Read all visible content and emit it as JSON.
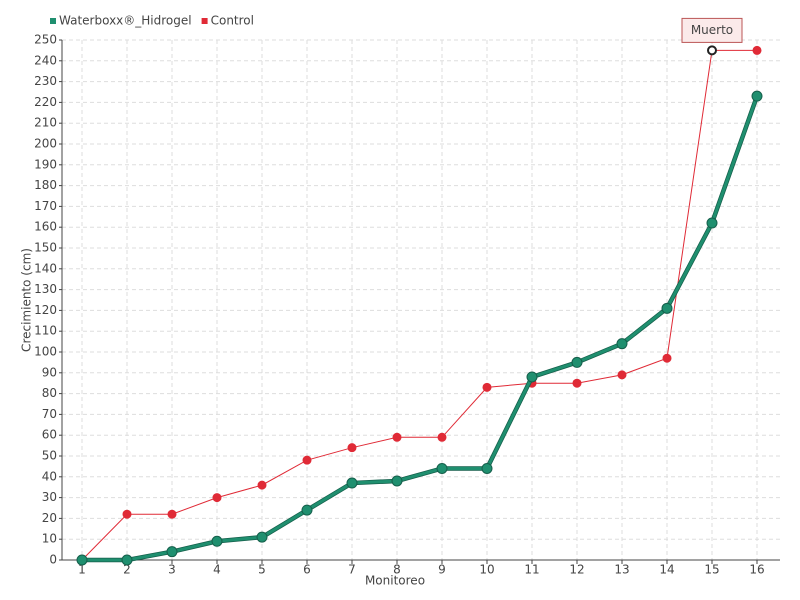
{
  "chart_data": {
    "type": "line",
    "x_label": "Monitoreo",
    "y_label": "Crecimiento (cm)",
    "categories": [
      "1",
      "2",
      "3",
      "4",
      "5",
      "6",
      "7",
      "8",
      "9",
      "10",
      "11",
      "12",
      "13",
      "14",
      "15",
      "16"
    ],
    "series": [
      {
        "name": "Waterboxx®_Hidrogel",
        "color": "#1f8f6f",
        "values": [
          0,
          0,
          4,
          9,
          11,
          24,
          37,
          38,
          44,
          44,
          88,
          95,
          104,
          121,
          162,
          223
        ]
      },
      {
        "name": "Control",
        "color": "#e02a36",
        "values": [
          0,
          22,
          22,
          30,
          36,
          48,
          54,
          59,
          59,
          83,
          85,
          85,
          89,
          97,
          245,
          245
        ]
      }
    ],
    "annotation": "Muerto",
    "ylim": [
      0,
      250
    ],
    "yticks": [
      0,
      10,
      20,
      30,
      40,
      50,
      60,
      70,
      80,
      90,
      100,
      110,
      120,
      130,
      140,
      150,
      160,
      170,
      180,
      190,
      200,
      210,
      220,
      230,
      240,
      250
    ],
    "grid": true,
    "legend": "top-left"
  }
}
